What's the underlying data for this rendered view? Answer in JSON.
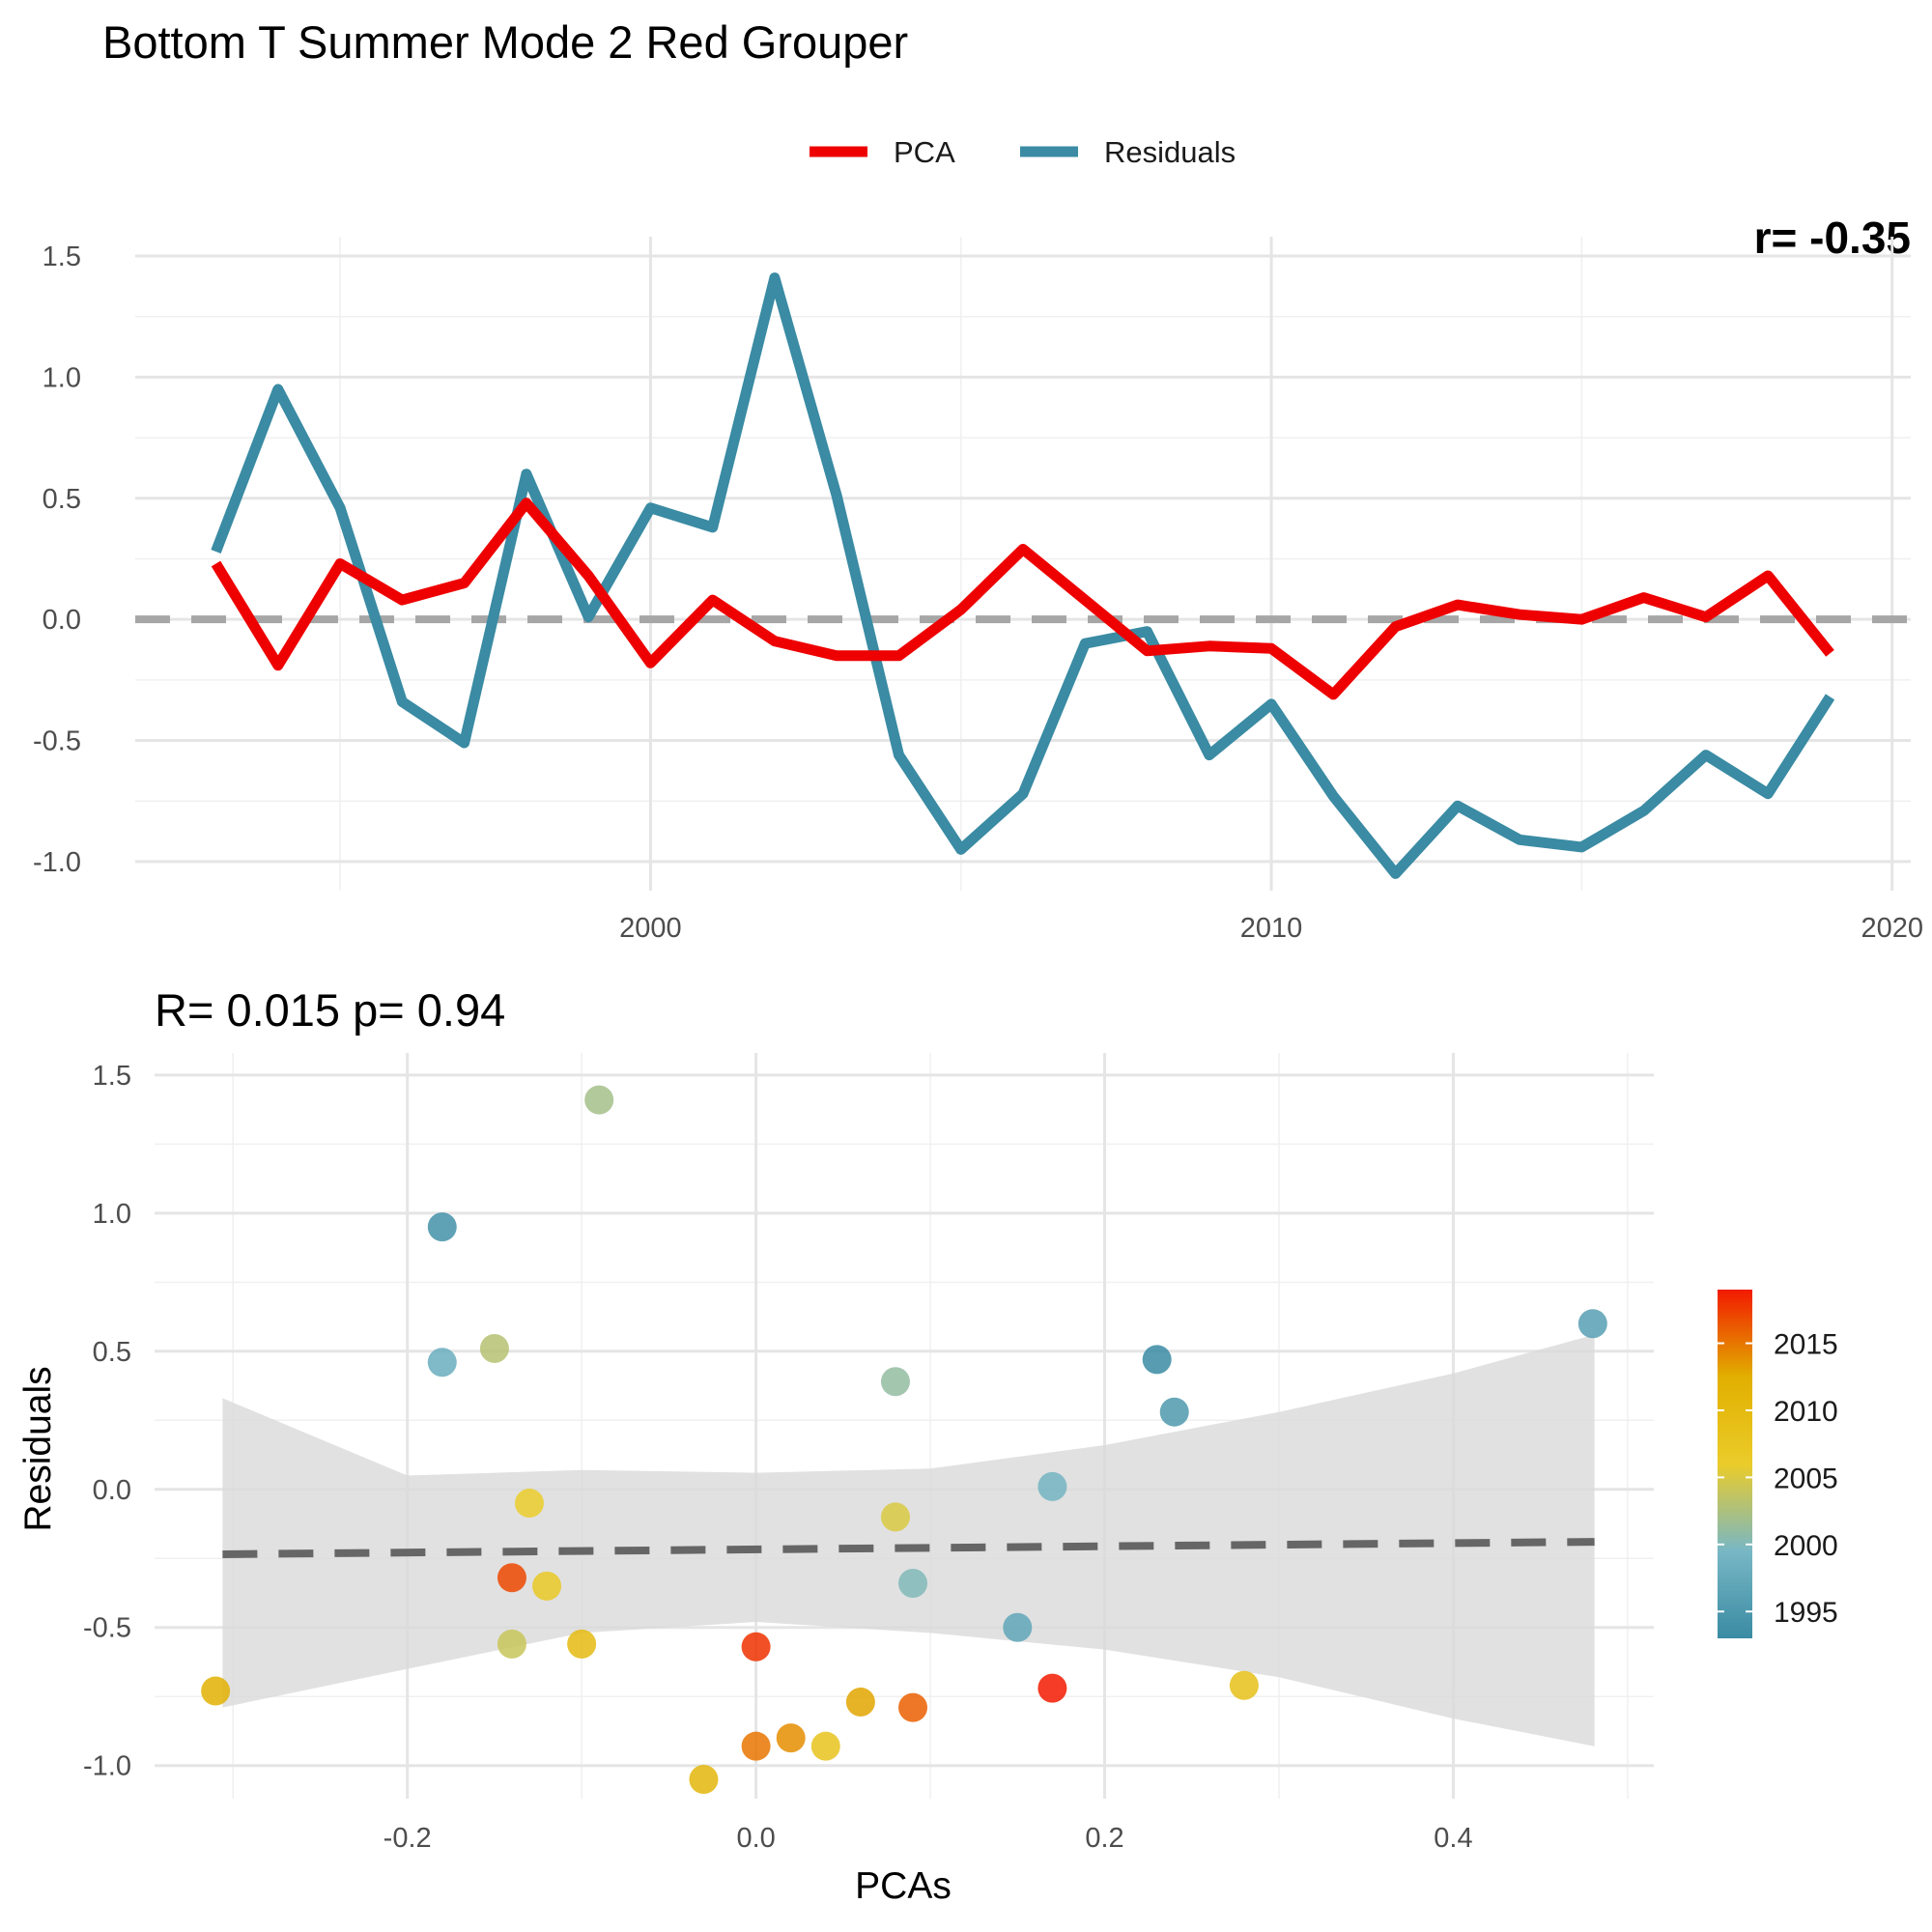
{
  "chart_data": [
    {
      "type": "line",
      "title": "Bottom T Summer Mode 2 Red Grouper",
      "corner_note": "r= -0.35",
      "xlabel": "",
      "ylabel": "",
      "xlim": [
        1991.7,
        2020.3
      ],
      "ylim": [
        -1.12,
        1.58
      ],
      "xticks": [
        2000,
        2010,
        2020
      ],
      "xtick_labels": [
        "2000",
        "2010",
        "2020"
      ],
      "yticks": [
        -1.0,
        -0.5,
        0.0,
        0.5,
        1.0,
        1.5
      ],
      "ytick_labels": [
        "-1.0",
        "-0.5",
        "0.0",
        "0.5",
        "1.0",
        "1.5"
      ],
      "grid": true,
      "legend": "top",
      "reference_line": 0,
      "x": [
        1993,
        1994,
        1995,
        1996,
        1997,
        1998,
        1999,
        2000,
        2001,
        2002,
        2003,
        2004,
        2005,
        2006,
        2007,
        2008,
        2009,
        2010,
        2011,
        2012,
        2013,
        2014,
        2015,
        2016,
        2017,
        2018,
        2019
      ],
      "series": [
        {
          "name": "PCA",
          "color": "#ee0000",
          "values": [
            0.23,
            -0.19,
            0.23,
            0.08,
            0.15,
            0.48,
            0.18,
            -0.18,
            0.08,
            -0.09,
            -0.15,
            -0.15,
            0.04,
            0.29,
            0.08,
            -0.13,
            -0.11,
            -0.12,
            -0.31,
            -0.03,
            0.06,
            0.02,
            0.0,
            0.09,
            0.01,
            0.18,
            -0.14
          ]
        },
        {
          "name": "Residuals",
          "color": "#3a8ba3",
          "values": [
            0.28,
            0.95,
            0.46,
            -0.34,
            -0.51,
            0.6,
            0.01,
            0.46,
            0.38,
            1.41,
            0.51,
            -0.56,
            -0.95,
            -0.72,
            -0.1,
            -0.05,
            -0.56,
            -0.35,
            -0.73,
            -1.05,
            -0.77,
            -0.91,
            -0.94,
            -0.79,
            -0.56,
            -0.72,
            -0.32
          ]
        }
      ]
    },
    {
      "type": "scatter",
      "title": "R= 0.015  p= 0.94",
      "xlabel": "PCAs",
      "ylabel": "Residuals",
      "xlim": [
        -0.345,
        0.515
      ],
      "ylim": [
        -1.12,
        1.58
      ],
      "xticks": [
        -0.2,
        0.0,
        0.2,
        0.4
      ],
      "xtick_labels": [
        "-0.2",
        "0.0",
        "0.2",
        "0.4"
      ],
      "yticks": [
        -1.0,
        -0.5,
        0.0,
        0.5,
        1.0,
        1.5
      ],
      "ytick_labels": [
        "-1.0",
        "-0.5",
        "0.0",
        "0.5",
        "1.0",
        "1.5"
      ],
      "grid": true,
      "fit_line": {
        "x": [
          -0.306,
          0.481
        ],
        "y": [
          -0.235,
          -0.19
        ],
        "style": "dashed",
        "color": "#666666"
      },
      "ci_band": {
        "x": [
          -0.306,
          -0.2,
          -0.1,
          0.0,
          0.1,
          0.2,
          0.3,
          0.4,
          0.481
        ],
        "upper": [
          0.33,
          0.05,
          0.07,
          0.06,
          0.075,
          0.16,
          0.28,
          0.42,
          0.56
        ],
        "lower": [
          -0.79,
          -0.65,
          -0.52,
          -0.48,
          -0.52,
          -0.58,
          -0.68,
          -0.83,
          -0.93
        ],
        "color": "#d9d9d9"
      },
      "colorbar": {
        "label_ticks": [
          1995,
          2000,
          2005,
          2010,
          2015
        ],
        "range": [
          1993,
          2019
        ],
        "colors": [
          "#3a8ba3",
          "#78b7c5",
          "#ebcc2a",
          "#e1af00",
          "#f21a00"
        ],
        "position": "right"
      },
      "points": [
        {
          "year": 1993,
          "x": 0.23,
          "y": 0.47
        },
        {
          "year": 1994,
          "x": -0.18,
          "y": 0.95
        },
        {
          "year": 1995,
          "x": 0.24,
          "y": 0.28
        },
        {
          "year": 1996,
          "x": 0.48,
          "y": 0.6
        },
        {
          "year": 1997,
          "x": 0.15,
          "y": -0.5
        },
        {
          "year": 1998,
          "x": -0.18,
          "y": 0.46
        },
        {
          "year": 1999,
          "x": 0.17,
          "y": 0.01
        },
        {
          "year": 2000,
          "x": 0.09,
          "y": -0.34
        },
        {
          "year": 2001,
          "x": 0.08,
          "y": 0.39
        },
        {
          "year": 2002,
          "x": -0.09,
          "y": 1.41
        },
        {
          "year": 2003,
          "x": -0.15,
          "y": 0.51
        },
        {
          "year": 2004,
          "x": -0.14,
          "y": -0.56
        },
        {
          "year": 2005,
          "x": 0.08,
          "y": -0.1
        },
        {
          "year": 2006,
          "x": -0.13,
          "y": -0.05
        },
        {
          "year": 2007,
          "x": -0.12,
          "y": -0.35
        },
        {
          "year": 2008,
          "x": 0.04,
          "y": -0.93
        },
        {
          "year": 2009,
          "x": 0.28,
          "y": -0.71
        },
        {
          "year": 2010,
          "x": -0.1,
          "y": -0.56
        },
        {
          "year": 2011,
          "x": -0.03,
          "y": -1.05
        },
        {
          "year": 2012,
          "x": -0.31,
          "y": -0.73
        },
        {
          "year": 2013,
          "x": 0.06,
          "y": -0.77
        },
        {
          "year": 2014,
          "x": 0.02,
          "y": -0.9
        },
        {
          "year": 2015,
          "x": 0.0,
          "y": -0.93
        },
        {
          "year": 2016,
          "x": 0.09,
          "y": -0.79
        },
        {
          "year": 2017,
          "x": -0.14,
          "y": -0.32
        },
        {
          "year": 2018,
          "x": 0.0,
          "y": -0.57
        },
        {
          "year": 2019,
          "x": 0.17,
          "y": -0.72
        }
      ]
    }
  ]
}
